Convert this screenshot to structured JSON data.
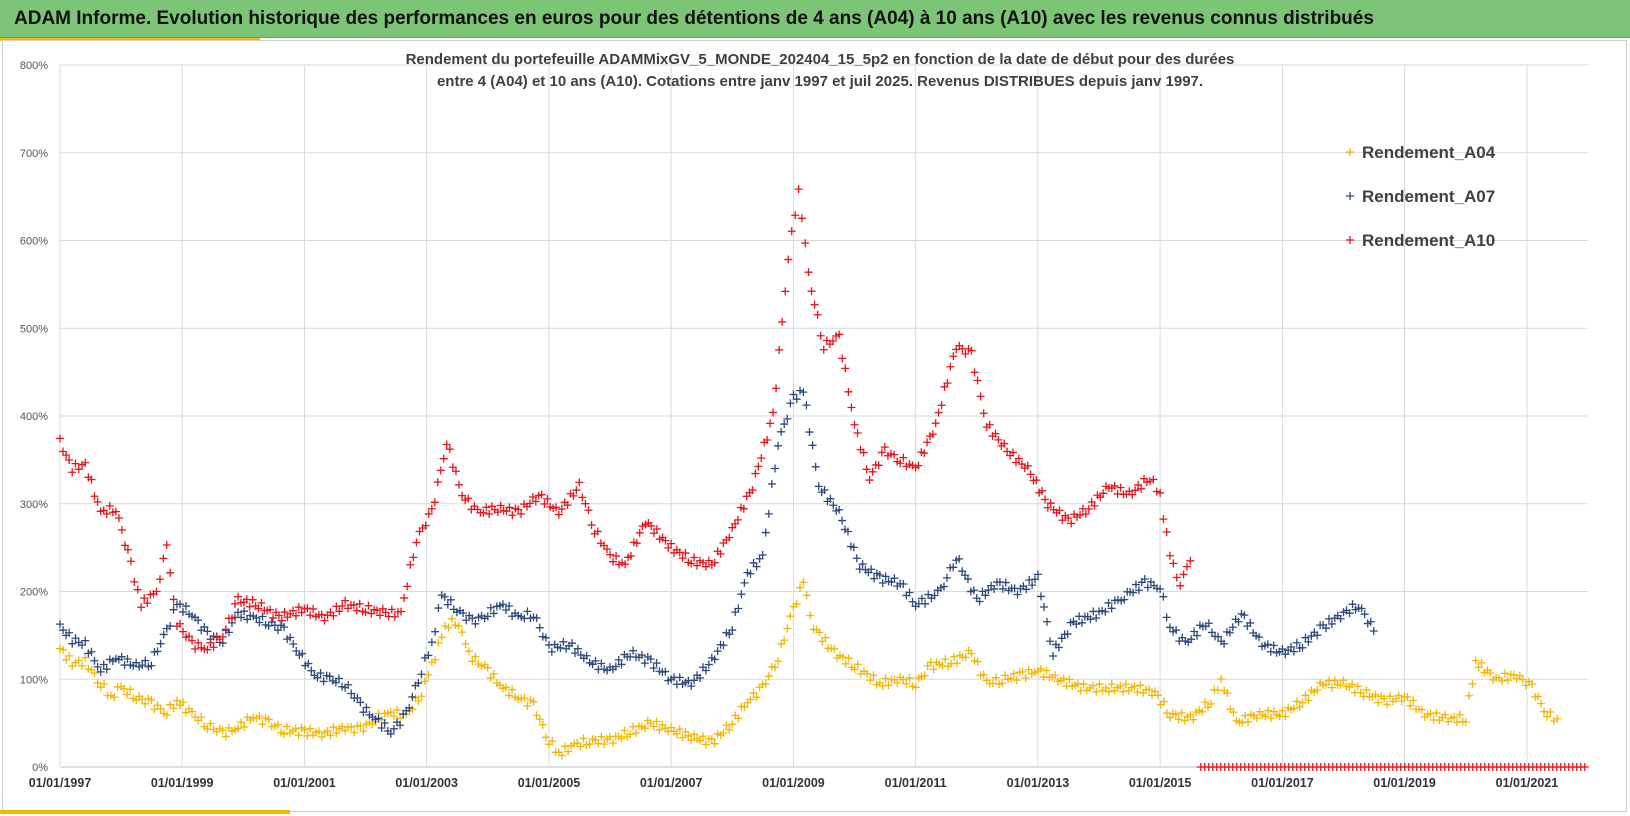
{
  "header": {
    "title": "ADAM Informe. Evolution historique des performances en euros pour des détentions de 4 ans (A04) à 10 ans (A10) avec les revenus connus distribués"
  },
  "chart_data": {
    "type": "scatter",
    "title_lines": [
      "Rendement du portefeuille ADAMMixGV_5_MONDE_202404_15_5p2  en fonction de la date de début pour des durées",
      "entre 4 (A04) et 10 ans (A10). Cotations  entre janv 1997 et juil 2025. Revenus DISTRIBUES depuis janv 1997."
    ],
    "xlabel": "",
    "ylabel": "",
    "x_range": [
      "1997-01-01",
      "2022-01-01"
    ],
    "ylim": [
      0,
      800
    ],
    "y_ticks": [
      "0%",
      "100%",
      "200%",
      "300%",
      "400%",
      "500%",
      "600%",
      "700%",
      "800%"
    ],
    "x_ticks": [
      "01/01/1997",
      "01/01/1999",
      "01/01/2001",
      "01/01/2003",
      "01/01/2005",
      "01/01/2007",
      "01/01/2009",
      "01/01/2011",
      "01/01/2013",
      "01/01/2015",
      "01/01/2017",
      "01/01/2019",
      "01/01/2021"
    ],
    "grid": true,
    "legend_position": "top-right",
    "marker": "+",
    "series": [
      {
        "name": "Rendement_A04",
        "color": "#f2b705",
        "points": [
          [
            "1997-01-01",
            135
          ],
          [
            "1997-03-15",
            118
          ],
          [
            "1997-06-01",
            120
          ],
          [
            "1997-09-01",
            95
          ],
          [
            "1997-11-01",
            80
          ],
          [
            "1998-01-01",
            90
          ],
          [
            "1998-04-01",
            80
          ],
          [
            "1998-07-01",
            72
          ],
          [
            "1998-10-01",
            62
          ],
          [
            "1998-12-01",
            76
          ],
          [
            "1999-03-01",
            60
          ],
          [
            "1999-06-01",
            48
          ],
          [
            "1999-09-01",
            38
          ],
          [
            "1999-12-01",
            45
          ],
          [
            "2000-03-01",
            58
          ],
          [
            "2000-06-01",
            50
          ],
          [
            "2000-09-01",
            42
          ],
          [
            "2001-01-01",
            40
          ],
          [
            "2001-05-01",
            38
          ],
          [
            "2001-09-01",
            45
          ],
          [
            "2001-12-01",
            42
          ],
          [
            "2002-03-01",
            55
          ],
          [
            "2002-06-01",
            62
          ],
          [
            "2002-09-01",
            58
          ],
          [
            "2002-12-01",
            85
          ],
          [
            "2003-02-01",
            115
          ],
          [
            "2003-04-01",
            150
          ],
          [
            "2003-06-01",
            170
          ],
          [
            "2003-08-01",
            150
          ],
          [
            "2003-10-01",
            125
          ],
          [
            "2004-01-01",
            110
          ],
          [
            "2004-04-01",
            90
          ],
          [
            "2004-07-01",
            80
          ],
          [
            "2004-10-01",
            70
          ],
          [
            "2005-01-01",
            30
          ],
          [
            "2005-03-01",
            15
          ],
          [
            "2005-06-01",
            25
          ],
          [
            "2005-09-01",
            30
          ],
          [
            "2006-01-01",
            30
          ],
          [
            "2006-05-01",
            40
          ],
          [
            "2006-09-01",
            50
          ],
          [
            "2007-01-01",
            42
          ],
          [
            "2007-05-01",
            35
          ],
          [
            "2007-09-01",
            28
          ],
          [
            "2008-01-01",
            50
          ],
          [
            "2008-04-01",
            75
          ],
          [
            "2008-07-01",
            90
          ],
          [
            "2008-10-01",
            125
          ],
          [
            "2009-01-01",
            180
          ],
          [
            "2009-03-01",
            210
          ],
          [
            "2009-05-01",
            160
          ],
          [
            "2009-09-01",
            130
          ],
          [
            "2010-01-01",
            115
          ],
          [
            "2010-06-01",
            95
          ],
          [
            "2010-10-01",
            100
          ],
          [
            "2011-01-01",
            95
          ],
          [
            "2011-04-01",
            115
          ],
          [
            "2011-08-01",
            120
          ],
          [
            "2011-12-01",
            130
          ],
          [
            "2012-03-01",
            95
          ],
          [
            "2012-06-01",
            100
          ],
          [
            "2012-10-01",
            105
          ],
          [
            "2013-01-01",
            110
          ],
          [
            "2013-05-01",
            100
          ],
          [
            "2013-10-01",
            90
          ],
          [
            "2014-03-01",
            90
          ],
          [
            "2014-08-01",
            90
          ],
          [
            "2014-12-01",
            85
          ],
          [
            "2015-03-01",
            60
          ],
          [
            "2015-07-01",
            55
          ],
          [
            "2015-11-01",
            75
          ],
          [
            "2016-01-01",
            100
          ],
          [
            "2016-04-01",
            50
          ],
          [
            "2016-08-01",
            60
          ],
          [
            "2017-01-01",
            60
          ],
          [
            "2017-05-01",
            75
          ],
          [
            "2017-09-01",
            95
          ],
          [
            "2018-01-01",
            95
          ],
          [
            "2018-05-01",
            85
          ],
          [
            "2018-09-01",
            75
          ],
          [
            "2019-01-01",
            80
          ],
          [
            "2019-05-01",
            60
          ],
          [
            "2019-09-01",
            55
          ],
          [
            "2020-01-01",
            55
          ],
          [
            "2020-03-01",
            120
          ],
          [
            "2020-07-01",
            100
          ],
          [
            "2020-11-01",
            105
          ],
          [
            "2021-02-01",
            90
          ],
          [
            "2021-05-01",
            60
          ],
          [
            "2021-07-01",
            55
          ]
        ]
      },
      {
        "name": "Rendement_A07",
        "color": "#2e4a7d",
        "points": [
          [
            "1997-01-01",
            160
          ],
          [
            "1997-03-15",
            145
          ],
          [
            "1997-06-01",
            140
          ],
          [
            "1997-09-01",
            110
          ],
          [
            "1997-12-01",
            125
          ],
          [
            "1998-04-01",
            115
          ],
          [
            "1998-07-01",
            120
          ],
          [
            "1998-10-01",
            155
          ],
          [
            "1998-12-01",
            185
          ],
          [
            "1999-03-01",
            175
          ],
          [
            "1999-06-01",
            150
          ],
          [
            "1999-09-01",
            145
          ],
          [
            "1999-12-01",
            175
          ],
          [
            "2000-03-01",
            170
          ],
          [
            "2000-06-01",
            165
          ],
          [
            "2000-09-01",
            155
          ],
          [
            "2000-12-01",
            130
          ],
          [
            "2001-03-01",
            105
          ],
          [
            "2001-06-01",
            100
          ],
          [
            "2001-09-01",
            95
          ],
          [
            "2001-12-01",
            70
          ],
          [
            "2002-03-01",
            55
          ],
          [
            "2002-06-01",
            40
          ],
          [
            "2002-09-01",
            60
          ],
          [
            "2002-12-01",
            110
          ],
          [
            "2003-02-01",
            140
          ],
          [
            "2003-04-01",
            195
          ],
          [
            "2003-07-01",
            180
          ],
          [
            "2003-10-01",
            165
          ],
          [
            "2004-01-01",
            175
          ],
          [
            "2004-04-01",
            185
          ],
          [
            "2004-07-01",
            170
          ],
          [
            "2004-10-01",
            175
          ],
          [
            "2005-01-01",
            135
          ],
          [
            "2005-05-01",
            140
          ],
          [
            "2005-09-01",
            120
          ],
          [
            "2006-01-01",
            110
          ],
          [
            "2006-05-01",
            130
          ],
          [
            "2006-09-01",
            120
          ],
          [
            "2007-01-01",
            100
          ],
          [
            "2007-05-01",
            95
          ],
          [
            "2007-09-01",
            120
          ],
          [
            "2008-01-01",
            160
          ],
          [
            "2008-04-01",
            220
          ],
          [
            "2008-07-01",
            240
          ],
          [
            "2008-10-01",
            370
          ],
          [
            "2009-01-01",
            420
          ],
          [
            "2009-03-01",
            430
          ],
          [
            "2009-06-01",
            320
          ],
          [
            "2009-10-01",
            290
          ],
          [
            "2010-02-01",
            230
          ],
          [
            "2010-06-01",
            215
          ],
          [
            "2010-10-01",
            210
          ],
          [
            "2011-01-01",
            185
          ],
          [
            "2011-06-01",
            200
          ],
          [
            "2011-09-01",
            240
          ],
          [
            "2012-01-01",
            190
          ],
          [
            "2012-05-01",
            210
          ],
          [
            "2012-09-01",
            200
          ],
          [
            "2013-01-01",
            215
          ],
          [
            "2013-04-01",
            130
          ],
          [
            "2013-08-01",
            165
          ],
          [
            "2014-01-01",
            175
          ],
          [
            "2014-06-01",
            195
          ],
          [
            "2014-10-01",
            210
          ],
          [
            "2015-01-01",
            205
          ],
          [
            "2015-03-01",
            160
          ],
          [
            "2015-06-01",
            140
          ],
          [
            "2015-10-01",
            165
          ],
          [
            "2016-01-01",
            140
          ],
          [
            "2016-05-01",
            175
          ],
          [
            "2016-09-01",
            140
          ],
          [
            "2017-01-01",
            130
          ],
          [
            "2017-05-01",
            140
          ],
          [
            "2017-09-01",
            160
          ],
          [
            "2018-01-01",
            175
          ],
          [
            "2018-04-01",
            185
          ],
          [
            "2018-07-01",
            155
          ]
        ]
      },
      {
        "name": "Rendement_A10",
        "color": "#e8141b",
        "points": [
          [
            "1997-01-01",
            370
          ],
          [
            "1997-03-15",
            340
          ],
          [
            "1997-06-01",
            345
          ],
          [
            "1997-09-01",
            290
          ],
          [
            "1997-12-01",
            295
          ],
          [
            "1998-03-01",
            230
          ],
          [
            "1998-05-01",
            185
          ],
          [
            "1998-08-01",
            200
          ],
          [
            "1998-10-01",
            250
          ],
          [
            "1998-12-01",
            165
          ],
          [
            "1999-03-01",
            140
          ],
          [
            "1999-06-01",
            135
          ],
          [
            "1999-09-01",
            150
          ],
          [
            "1999-12-01",
            190
          ],
          [
            "2000-04-01",
            185
          ],
          [
            "2000-08-01",
            170
          ],
          [
            "2001-01-01",
            180
          ],
          [
            "2001-05-01",
            170
          ],
          [
            "2001-09-01",
            185
          ],
          [
            "2002-01-01",
            180
          ],
          [
            "2002-05-01",
            175
          ],
          [
            "2002-08-01",
            175
          ],
          [
            "2002-11-01",
            260
          ],
          [
            "2003-02-01",
            290
          ],
          [
            "2003-05-01",
            370
          ],
          [
            "2003-08-01",
            310
          ],
          [
            "2003-11-01",
            290
          ],
          [
            "2004-03-01",
            295
          ],
          [
            "2004-07-01",
            290
          ],
          [
            "2004-11-01",
            310
          ],
          [
            "2005-03-01",
            290
          ],
          [
            "2005-07-01",
            320
          ],
          [
            "2005-10-01",
            270
          ],
          [
            "2006-01-01",
            240
          ],
          [
            "2006-04-01",
            230
          ],
          [
            "2006-08-01",
            280
          ],
          [
            "2007-01-01",
            250
          ],
          [
            "2007-05-01",
            235
          ],
          [
            "2007-09-01",
            230
          ],
          [
            "2008-01-01",
            270
          ],
          [
            "2008-05-01",
            320
          ],
          [
            "2008-09-01",
            400
          ],
          [
            "2008-12-01",
            580
          ],
          [
            "2009-02-01",
            660
          ],
          [
            "2009-04-01",
            560
          ],
          [
            "2009-07-01",
            480
          ],
          [
            "2009-10-01",
            490
          ],
          [
            "2010-01-01",
            390
          ],
          [
            "2010-04-01",
            330
          ],
          [
            "2010-07-01",
            360
          ],
          [
            "2010-10-01",
            350
          ],
          [
            "2011-01-01",
            340
          ],
          [
            "2011-05-01",
            390
          ],
          [
            "2011-09-01",
            480
          ],
          [
            "2011-12-01",
            470
          ],
          [
            "2012-03-01",
            390
          ],
          [
            "2012-07-01",
            360
          ],
          [
            "2012-11-01",
            340
          ],
          [
            "2013-03-01",
            300
          ],
          [
            "2013-07-01",
            280
          ],
          [
            "2013-11-01",
            295
          ],
          [
            "2014-03-01",
            320
          ],
          [
            "2014-07-01",
            310
          ],
          [
            "2014-11-01",
            330
          ],
          [
            "2015-01-01",
            310
          ],
          [
            "2015-03-01",
            240
          ],
          [
            "2015-05-01",
            210
          ],
          [
            "2015-07-01",
            235
          ]
        ]
      }
    ],
    "zero_band": {
      "series": "Rendement_A10",
      "x_start": "2015-09-01",
      "x_end": "2022-01-01",
      "value": 0
    }
  }
}
